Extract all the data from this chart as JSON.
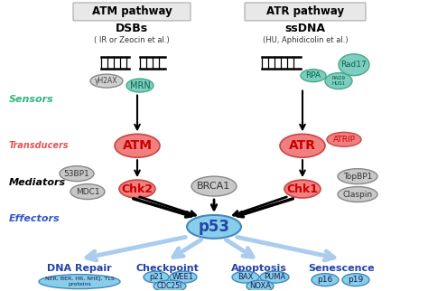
{
  "title_atm": "ATM pathway",
  "title_atr": "ATR pathway",
  "dsbs_text": "DSBs",
  "dsbs_sub": "( IR or Zeocin et al.)",
  "ssdna_text": "ssDNA",
  "ssdna_sub": "(HU, Aphidicolin et al.)",
  "sensors_label": "Sensors",
  "transducers_label": "Transducers",
  "mediators_label": "Mediators",
  "effectors_label": "Effectors",
  "color_sensors": "#2db87d",
  "color_transducers": "#e05555",
  "color_effectors": "#3355cc",
  "color_pink_ellipse": "#f08080",
  "color_green_ellipse": "#7ecdc0",
  "color_blue_ellipse": "#87CEEB",
  "color_blue_outline": "#6699cc",
  "color_dark_blue_text": "#2244aa",
  "bg_color": "#ffffff"
}
